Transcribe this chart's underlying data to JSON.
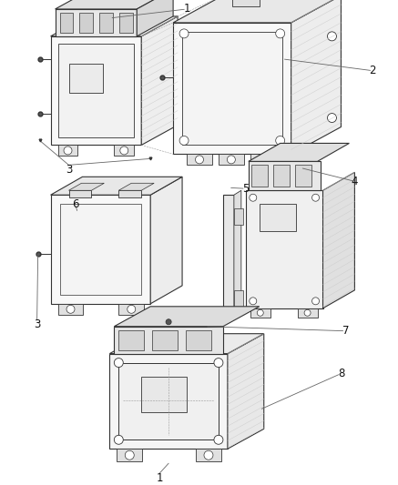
{
  "bg_color": "#ffffff",
  "line_color": "#333333",
  "label_color": "#111111",
  "lw": 0.8,
  "figsize": [
    4.37,
    5.33
  ],
  "dpi": 100,
  "label_fontsize": 8.5
}
